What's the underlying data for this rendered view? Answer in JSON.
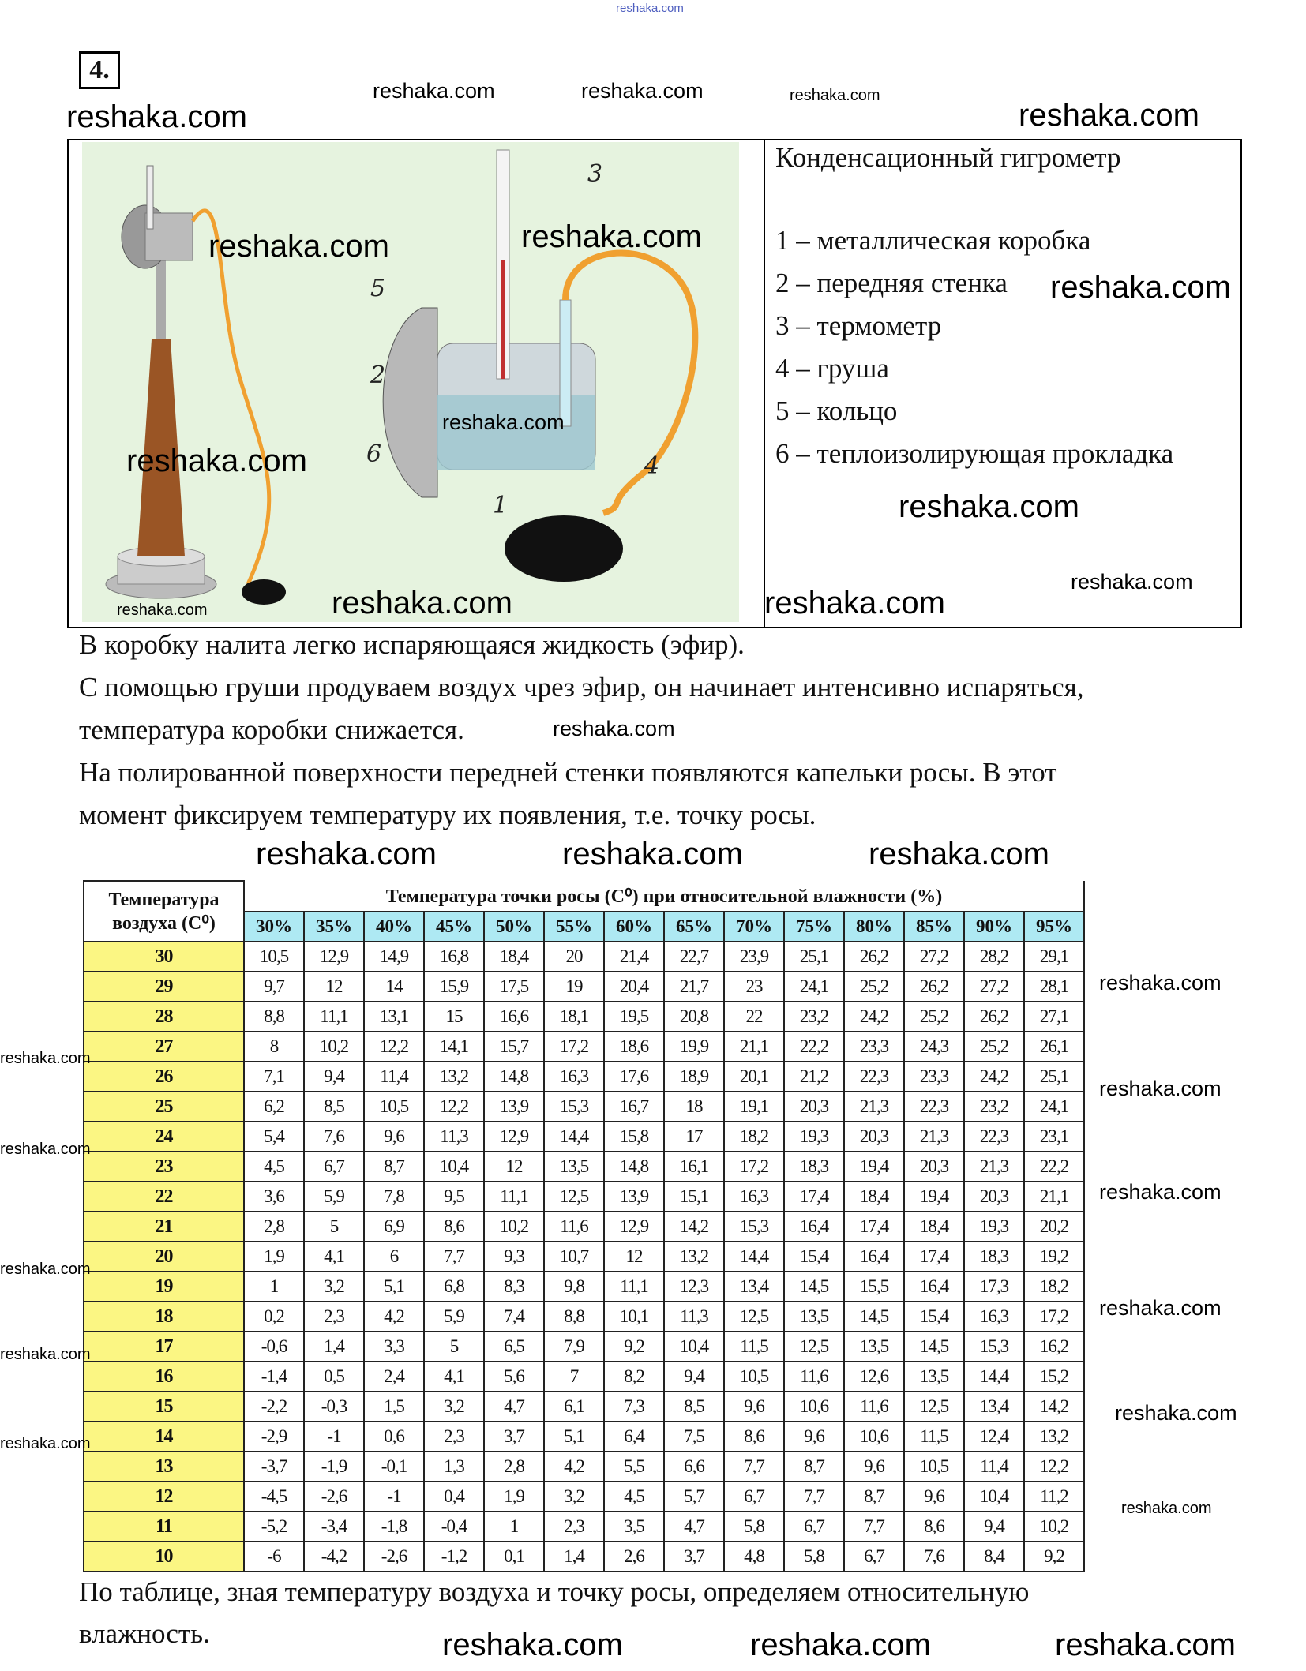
{
  "watermark": "reshaka.com",
  "task_number": "4.",
  "figure": {
    "labels": [
      "1",
      "2",
      "3",
      "4",
      "5",
      "6"
    ]
  },
  "legend": {
    "title": "Конденсационный гигрометр",
    "items": [
      "1 – металлическая коробка",
      "2 – передняя стенка",
      "3 – термометр",
      "4 – груша",
      "5 – кольцо",
      "6 – теплоизолирующая прокладка"
    ]
  },
  "paragraphs": [
    "В коробку налита легко испаряющаяся жидкость (эфир).",
    "С помощью груши продуваем воздух чрез эфир, он начинает интенсивно испаряться,",
    "температура коробки снижается.",
    "На полированной поверхности передней стенки появляются капельки росы. В этот",
    "момент фиксируем температуру их появления, т.е. точку росы."
  ],
  "table": {
    "corner_label_1": "Температура",
    "corner_label_2": "воздуха (С⁰)",
    "super_header": "Температура точки росы (С⁰) при относительной влажности (%)",
    "humidity_headers": [
      "30%",
      "35%",
      "40%",
      "45%",
      "50%",
      "55%",
      "60%",
      "65%",
      "70%",
      "75%",
      "80%",
      "85%",
      "90%",
      "95%"
    ],
    "rows": [
      {
        "t": "30",
        "v": [
          "10,5",
          "12,9",
          "14,9",
          "16,8",
          "18,4",
          "20",
          "21,4",
          "22,7",
          "23,9",
          "25,1",
          "26,2",
          "27,2",
          "28,2",
          "29,1"
        ]
      },
      {
        "t": "29",
        "v": [
          "9,7",
          "12",
          "14",
          "15,9",
          "17,5",
          "19",
          "20,4",
          "21,7",
          "23",
          "24,1",
          "25,2",
          "26,2",
          "27,2",
          "28,1"
        ]
      },
      {
        "t": "28",
        "v": [
          "8,8",
          "11,1",
          "13,1",
          "15",
          "16,6",
          "18,1",
          "19,5",
          "20,8",
          "22",
          "23,2",
          "24,2",
          "25,2",
          "26,2",
          "27,1"
        ]
      },
      {
        "t": "27",
        "v": [
          "8",
          "10,2",
          "12,2",
          "14,1",
          "15,7",
          "17,2",
          "18,6",
          "19,9",
          "21,1",
          "22,2",
          "23,3",
          "24,3",
          "25,2",
          "26,1"
        ]
      },
      {
        "t": "26",
        "v": [
          "7,1",
          "9,4",
          "11,4",
          "13,2",
          "14,8",
          "16,3",
          "17,6",
          "18,9",
          "20,1",
          "21,2",
          "22,3",
          "23,3",
          "24,2",
          "25,1"
        ]
      },
      {
        "t": "25",
        "v": [
          "6,2",
          "8,5",
          "10,5",
          "12,2",
          "13,9",
          "15,3",
          "16,7",
          "18",
          "19,1",
          "20,3",
          "21,3",
          "22,3",
          "23,2",
          "24,1"
        ]
      },
      {
        "t": "24",
        "v": [
          "5,4",
          "7,6",
          "9,6",
          "11,3",
          "12,9",
          "14,4",
          "15,8",
          "17",
          "18,2",
          "19,3",
          "20,3",
          "21,3",
          "22,3",
          "23,1"
        ]
      },
      {
        "t": "23",
        "v": [
          "4,5",
          "6,7",
          "8,7",
          "10,4",
          "12",
          "13,5",
          "14,8",
          "16,1",
          "17,2",
          "18,3",
          "19,4",
          "20,3",
          "21,3",
          "22,2"
        ]
      },
      {
        "t": "22",
        "v": [
          "3,6",
          "5,9",
          "7,8",
          "9,5",
          "11,1",
          "12,5",
          "13,9",
          "15,1",
          "16,3",
          "17,4",
          "18,4",
          "19,4",
          "20,3",
          "21,1"
        ]
      },
      {
        "t": "21",
        "v": [
          "2,8",
          "5",
          "6,9",
          "8,6",
          "10,2",
          "11,6",
          "12,9",
          "14,2",
          "15,3",
          "16,4",
          "17,4",
          "18,4",
          "19,3",
          "20,2"
        ]
      },
      {
        "t": "20",
        "v": [
          "1,9",
          "4,1",
          "6",
          "7,7",
          "9,3",
          "10,7",
          "12",
          "13,2",
          "14,4",
          "15,4",
          "16,4",
          "17,4",
          "18,3",
          "19,2"
        ]
      },
      {
        "t": "19",
        "v": [
          "1",
          "3,2",
          "5,1",
          "6,8",
          "8,3",
          "9,8",
          "11,1",
          "12,3",
          "13,4",
          "14,5",
          "15,5",
          "16,4",
          "17,3",
          "18,2"
        ]
      },
      {
        "t": "18",
        "v": [
          "0,2",
          "2,3",
          "4,2",
          "5,9",
          "7,4",
          "8,8",
          "10,1",
          "11,3",
          "12,5",
          "13,5",
          "14,5",
          "15,4",
          "16,3",
          "17,2"
        ]
      },
      {
        "t": "17",
        "v": [
          "-0,6",
          "1,4",
          "3,3",
          "5",
          "6,5",
          "7,9",
          "9,2",
          "10,4",
          "11,5",
          "12,5",
          "13,5",
          "14,5",
          "15,3",
          "16,2"
        ]
      },
      {
        "t": "16",
        "v": [
          "-1,4",
          "0,5",
          "2,4",
          "4,1",
          "5,6",
          "7",
          "8,2",
          "9,4",
          "10,5",
          "11,6",
          "12,6",
          "13,5",
          "14,4",
          "15,2"
        ]
      },
      {
        "t": "15",
        "v": [
          "-2,2",
          "-0,3",
          "1,5",
          "3,2",
          "4,7",
          "6,1",
          "7,3",
          "8,5",
          "9,6",
          "10,6",
          "11,6",
          "12,5",
          "13,4",
          "14,2"
        ]
      },
      {
        "t": "14",
        "v": [
          "-2,9",
          "-1",
          "0,6",
          "2,3",
          "3,7",
          "5,1",
          "6,4",
          "7,5",
          "8,6",
          "9,6",
          "10,6",
          "11,5",
          "12,4",
          "13,2"
        ]
      },
      {
        "t": "13",
        "v": [
          "-3,7",
          "-1,9",
          "-0,1",
          "1,3",
          "2,8",
          "4,2",
          "5,5",
          "6,6",
          "7,7",
          "8,7",
          "9,6",
          "10,5",
          "11,4",
          "12,2"
        ]
      },
      {
        "t": "12",
        "v": [
          "-4,5",
          "-2,6",
          "-1",
          "0,4",
          "1,9",
          "3,2",
          "4,5",
          "5,7",
          "6,7",
          "7,7",
          "8,7",
          "9,6",
          "10,4",
          "11,2"
        ]
      },
      {
        "t": "11",
        "v": [
          "-5,2",
          "-3,4",
          "-1,8",
          "-0,4",
          "1",
          "2,3",
          "3,5",
          "4,7",
          "5,8",
          "6,7",
          "7,7",
          "8,6",
          "9,4",
          "10,2"
        ]
      },
      {
        "t": "10",
        "v": [
          "-6",
          "-4,2",
          "-2,6",
          "-1,2",
          "0,1",
          "1,4",
          "2,6",
          "3,7",
          "4,8",
          "5,8",
          "6,7",
          "7,6",
          "8,4",
          "9,2"
        ]
      }
    ]
  },
  "conclusion": [
    "По таблице, зная температуру воздуха и точку росы, определяем относительную",
    "влажность."
  ],
  "colors": {
    "figure_bg": "#e6f3df",
    "header_cyan": "#aee9f3",
    "temp_yellow": "#fbf683"
  }
}
